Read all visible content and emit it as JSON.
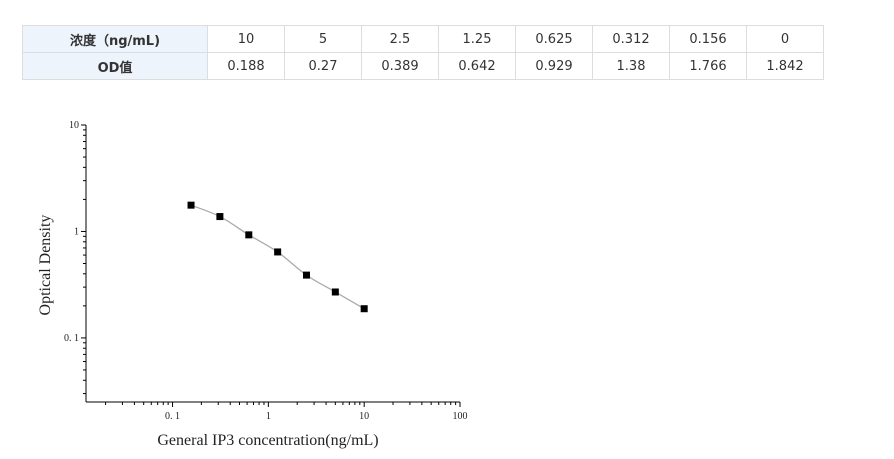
{
  "table": {
    "row1_header": "浓度（ng/mL)",
    "row2_header": "OD值",
    "concentrations": [
      "10",
      "5",
      "2.5",
      "1.25",
      "0.625",
      "0.312",
      "0.156",
      "0"
    ],
    "od": [
      "0.188",
      "0.27",
      "0.389",
      "0.642",
      "0.929",
      "1.38",
      "1.766",
      "1.842"
    ]
  },
  "chart_data": {
    "type": "scatter",
    "xlabel": "General IP3 concentration(ng/mL)",
    "ylabel": "Optical Density",
    "xscale": "log",
    "yscale": "log",
    "xlim": [
      0.0125,
      100
    ],
    "ylim": [
      0.025,
      10
    ],
    "xticks": [
      "0. 1",
      "1",
      "10",
      "100"
    ],
    "yticks": [
      "10",
      "1",
      "0. 1"
    ],
    "grid": false,
    "x": [
      10,
      5,
      2.5,
      1.25,
      0.625,
      0.312,
      0.156
    ],
    "y": [
      0.188,
      0.27,
      0.389,
      0.642,
      0.929,
      1.38,
      1.766
    ],
    "fit_curve": true,
    "marker_color": "#000000",
    "curve_color": "#aaaaaa"
  }
}
